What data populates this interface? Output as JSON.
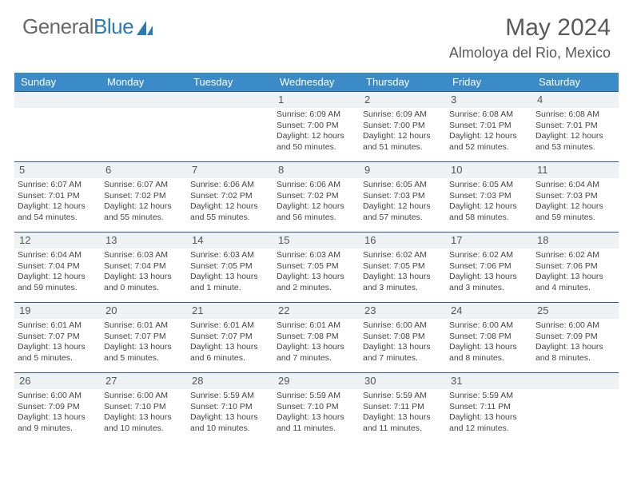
{
  "logo": {
    "text1": "General",
    "text2": "Blue"
  },
  "title": "May 2024",
  "location": "Almoloya del Rio, Mexico",
  "colors": {
    "header_bg": "#3b8bc8",
    "header_text": "#ffffff",
    "band_bg": "#eef2f5",
    "band_border": "#2a5a85",
    "body_text": "#444444"
  },
  "weekdays": [
    "Sunday",
    "Monday",
    "Tuesday",
    "Wednesday",
    "Thursday",
    "Friday",
    "Saturday"
  ],
  "weeks": [
    [
      {
        "day": "",
        "lines": []
      },
      {
        "day": "",
        "lines": []
      },
      {
        "day": "",
        "lines": []
      },
      {
        "day": "1",
        "lines": [
          "Sunrise: 6:09 AM",
          "Sunset: 7:00 PM",
          "Daylight: 12 hours and 50 minutes."
        ]
      },
      {
        "day": "2",
        "lines": [
          "Sunrise: 6:09 AM",
          "Sunset: 7:00 PM",
          "Daylight: 12 hours and 51 minutes."
        ]
      },
      {
        "day": "3",
        "lines": [
          "Sunrise: 6:08 AM",
          "Sunset: 7:01 PM",
          "Daylight: 12 hours and 52 minutes."
        ]
      },
      {
        "day": "4",
        "lines": [
          "Sunrise: 6:08 AM",
          "Sunset: 7:01 PM",
          "Daylight: 12 hours and 53 minutes."
        ]
      }
    ],
    [
      {
        "day": "5",
        "lines": [
          "Sunrise: 6:07 AM",
          "Sunset: 7:01 PM",
          "Daylight: 12 hours and 54 minutes."
        ]
      },
      {
        "day": "6",
        "lines": [
          "Sunrise: 6:07 AM",
          "Sunset: 7:02 PM",
          "Daylight: 12 hours and 55 minutes."
        ]
      },
      {
        "day": "7",
        "lines": [
          "Sunrise: 6:06 AM",
          "Sunset: 7:02 PM",
          "Daylight: 12 hours and 55 minutes."
        ]
      },
      {
        "day": "8",
        "lines": [
          "Sunrise: 6:06 AM",
          "Sunset: 7:02 PM",
          "Daylight: 12 hours and 56 minutes."
        ]
      },
      {
        "day": "9",
        "lines": [
          "Sunrise: 6:05 AM",
          "Sunset: 7:03 PM",
          "Daylight: 12 hours and 57 minutes."
        ]
      },
      {
        "day": "10",
        "lines": [
          "Sunrise: 6:05 AM",
          "Sunset: 7:03 PM",
          "Daylight: 12 hours and 58 minutes."
        ]
      },
      {
        "day": "11",
        "lines": [
          "Sunrise: 6:04 AM",
          "Sunset: 7:03 PM",
          "Daylight: 12 hours and 59 minutes."
        ]
      }
    ],
    [
      {
        "day": "12",
        "lines": [
          "Sunrise: 6:04 AM",
          "Sunset: 7:04 PM",
          "Daylight: 12 hours and 59 minutes."
        ]
      },
      {
        "day": "13",
        "lines": [
          "Sunrise: 6:03 AM",
          "Sunset: 7:04 PM",
          "Daylight: 13 hours and 0 minutes."
        ]
      },
      {
        "day": "14",
        "lines": [
          "Sunrise: 6:03 AM",
          "Sunset: 7:05 PM",
          "Daylight: 13 hours and 1 minute."
        ]
      },
      {
        "day": "15",
        "lines": [
          "Sunrise: 6:03 AM",
          "Sunset: 7:05 PM",
          "Daylight: 13 hours and 2 minutes."
        ]
      },
      {
        "day": "16",
        "lines": [
          "Sunrise: 6:02 AM",
          "Sunset: 7:05 PM",
          "Daylight: 13 hours and 3 minutes."
        ]
      },
      {
        "day": "17",
        "lines": [
          "Sunrise: 6:02 AM",
          "Sunset: 7:06 PM",
          "Daylight: 13 hours and 3 minutes."
        ]
      },
      {
        "day": "18",
        "lines": [
          "Sunrise: 6:02 AM",
          "Sunset: 7:06 PM",
          "Daylight: 13 hours and 4 minutes."
        ]
      }
    ],
    [
      {
        "day": "19",
        "lines": [
          "Sunrise: 6:01 AM",
          "Sunset: 7:07 PM",
          "Daylight: 13 hours and 5 minutes."
        ]
      },
      {
        "day": "20",
        "lines": [
          "Sunrise: 6:01 AM",
          "Sunset: 7:07 PM",
          "Daylight: 13 hours and 5 minutes."
        ]
      },
      {
        "day": "21",
        "lines": [
          "Sunrise: 6:01 AM",
          "Sunset: 7:07 PM",
          "Daylight: 13 hours and 6 minutes."
        ]
      },
      {
        "day": "22",
        "lines": [
          "Sunrise: 6:01 AM",
          "Sunset: 7:08 PM",
          "Daylight: 13 hours and 7 minutes."
        ]
      },
      {
        "day": "23",
        "lines": [
          "Sunrise: 6:00 AM",
          "Sunset: 7:08 PM",
          "Daylight: 13 hours and 7 minutes."
        ]
      },
      {
        "day": "24",
        "lines": [
          "Sunrise: 6:00 AM",
          "Sunset: 7:08 PM",
          "Daylight: 13 hours and 8 minutes."
        ]
      },
      {
        "day": "25",
        "lines": [
          "Sunrise: 6:00 AM",
          "Sunset: 7:09 PM",
          "Daylight: 13 hours and 8 minutes."
        ]
      }
    ],
    [
      {
        "day": "26",
        "lines": [
          "Sunrise: 6:00 AM",
          "Sunset: 7:09 PM",
          "Daylight: 13 hours and 9 minutes."
        ]
      },
      {
        "day": "27",
        "lines": [
          "Sunrise: 6:00 AM",
          "Sunset: 7:10 PM",
          "Daylight: 13 hours and 10 minutes."
        ]
      },
      {
        "day": "28",
        "lines": [
          "Sunrise: 5:59 AM",
          "Sunset: 7:10 PM",
          "Daylight: 13 hours and 10 minutes."
        ]
      },
      {
        "day": "29",
        "lines": [
          "Sunrise: 5:59 AM",
          "Sunset: 7:10 PM",
          "Daylight: 13 hours and 11 minutes."
        ]
      },
      {
        "day": "30",
        "lines": [
          "Sunrise: 5:59 AM",
          "Sunset: 7:11 PM",
          "Daylight: 13 hours and 11 minutes."
        ]
      },
      {
        "day": "31",
        "lines": [
          "Sunrise: 5:59 AM",
          "Sunset: 7:11 PM",
          "Daylight: 13 hours and 12 minutes."
        ]
      },
      {
        "day": "",
        "lines": []
      }
    ]
  ]
}
